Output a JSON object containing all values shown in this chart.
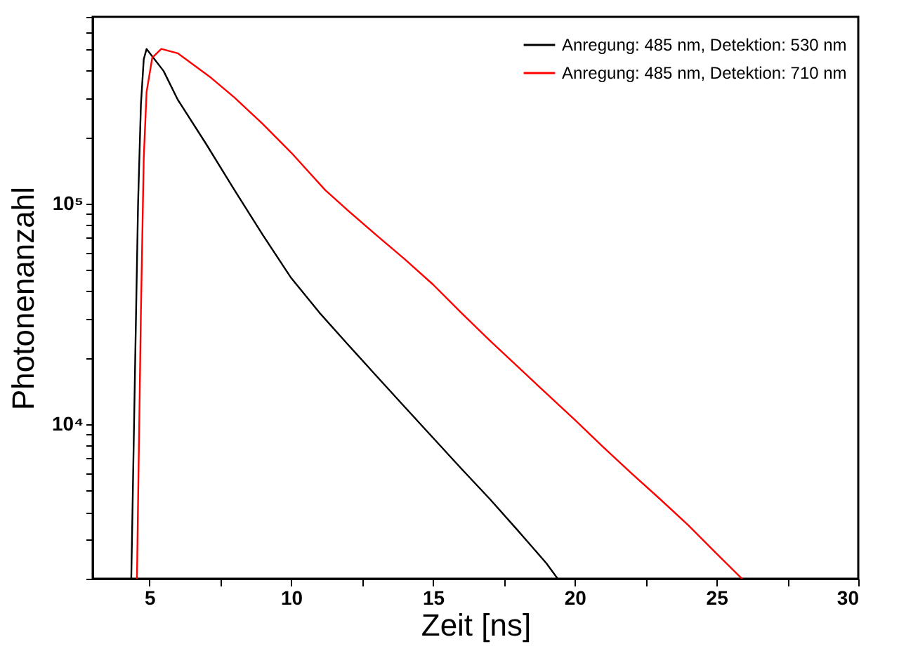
{
  "chart_data": {
    "type": "line",
    "xlabel": "Zeit [ns]",
    "ylabel": "Photonenanzahl",
    "series": [
      {
        "name": "Anregung: 485 nm, Detektion: 530 nm",
        "color": "#000000",
        "x": [
          4.36,
          4.5,
          4.6,
          4.7,
          4.8,
          4.9,
          5.5,
          6.0,
          7.0,
          8.0,
          9.0,
          10.0,
          11.0,
          12.0,
          13.0,
          14.0,
          15.0,
          16.0,
          17.0,
          18.0,
          19.0,
          19.4
        ],
        "values": [
          2000,
          20000,
          100000,
          280000,
          450000,
          501000,
          398000,
          295000,
          186000,
          115000,
          72000,
          46000,
          32000,
          23000,
          16600,
          12000,
          8700,
          6300,
          4600,
          3300,
          2350,
          2000
        ]
      },
      {
        "name": "Anregung: 485 nm, Detektion: 710 nm",
        "color": "#ff0000",
        "x": [
          4.56,
          4.7,
          4.8,
          4.9,
          5.1,
          5.42,
          6.0,
          7.16,
          8.0,
          9.0,
          10.0,
          11.2,
          12.0,
          13.0,
          14.0,
          15.0,
          16.0,
          17.0,
          18.0,
          19.0,
          20.0,
          21.0,
          22.0,
          23.0,
          24.0,
          25.0,
          25.9
        ],
        "values": [
          2000,
          32000,
          160000,
          320000,
          457000,
          501000,
          479000,
          372000,
          302000,
          229000,
          170000,
          115000,
          93000,
          72000,
          56000,
          43000,
          32000,
          24000,
          18200,
          13800,
          10500,
          7900,
          6000,
          4600,
          3500,
          2600,
          2000
        ]
      }
    ],
    "xlim": [
      3,
      30
    ],
    "xticks": [
      5,
      {
        "value": 7.5,
        "label": null
      },
      10,
      {
        "value": 12.5,
        "label": null
      },
      15,
      {
        "value": 17.5,
        "label": null
      },
      20,
      {
        "value": 22.5,
        "label": null
      },
      25,
      {
        "value": 27.5,
        "label": null
      },
      30
    ],
    "ylim": [
      2000,
      700000
    ],
    "yticks": [
      {
        "value": 2000,
        "label": null
      },
      {
        "value": 3000,
        "label": null
      },
      {
        "value": 4000,
        "label": null
      },
      {
        "value": 5000,
        "label": null
      },
      {
        "value": 6000,
        "label": null
      },
      {
        "value": 7000,
        "label": null
      },
      {
        "value": 8000,
        "label": null
      },
      {
        "value": 9000,
        "label": null
      },
      {
        "value": 10000,
        "label": "10⁴"
      },
      {
        "value": 20000,
        "label": null
      },
      {
        "value": 30000,
        "label": null
      },
      {
        "value": 40000,
        "label": null
      },
      {
        "value": 50000,
        "label": null
      },
      {
        "value": 60000,
        "label": null
      },
      {
        "value": 70000,
        "label": null
      },
      {
        "value": 80000,
        "label": null
      },
      {
        "value": 90000,
        "label": null
      },
      {
        "value": 100000,
        "label": "10⁵"
      },
      {
        "value": 200000,
        "label": null
      },
      {
        "value": 300000,
        "label": null
      },
      {
        "value": 400000,
        "label": null
      },
      {
        "value": 500000,
        "label": null
      },
      {
        "value": 600000,
        "label": null
      },
      {
        "value": 700000,
        "label": null
      }
    ],
    "log": "y",
    "grid": false,
    "legend": "top right",
    "marker": "none",
    "line_style": "solid"
  }
}
